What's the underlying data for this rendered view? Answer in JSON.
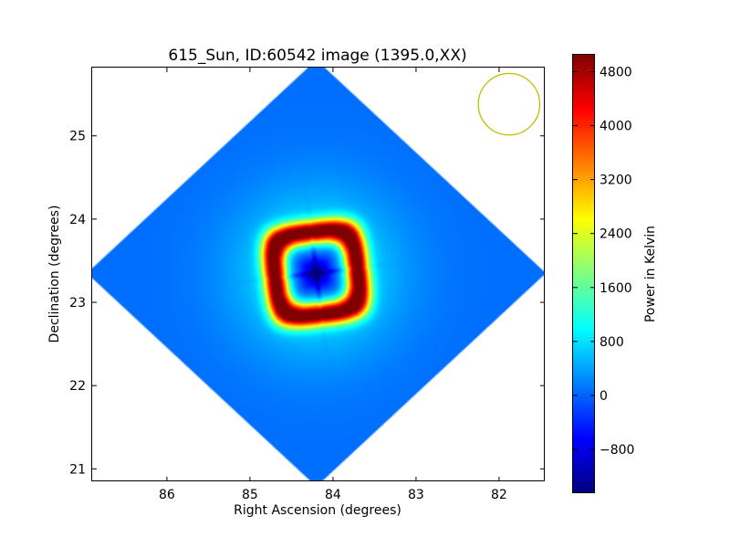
{
  "chart_data": {
    "type": "heatmap",
    "title": "615_Sun, ID:60542 image (1395.0,XX)",
    "xlabel": "Right Ascension (degrees)",
    "ylabel": "Declination (degrees)",
    "xlim": [
      86.9,
      81.45
    ],
    "ylim": [
      20.85,
      25.82
    ],
    "x_ticks": [
      86,
      85,
      84,
      83,
      82
    ],
    "y_ticks": [
      21,
      22,
      23,
      24,
      25
    ],
    "colorbar": {
      "label": "Power in Kelvin",
      "colormap": "jet",
      "range": [
        -1450,
        5050
      ],
      "ticks": [
        -800,
        0,
        800,
        1600,
        2400,
        3200,
        4000,
        4800
      ],
      "tick_labels": [
        "−800",
        "0",
        "800",
        "1600",
        "2400",
        "3200",
        "4000",
        "4800"
      ]
    },
    "image_region": {
      "shape": "diamond",
      "center": [
        84.2,
        23.35
      ],
      "half_width_ra": 2.75,
      "half_height_dec": 2.55,
      "background_value": 60
    },
    "source": {
      "center": [
        84.2,
        23.35
      ],
      "core_value": -1450,
      "ring_peak_value": 5000,
      "ring_corner_value": 4900,
      "ring_half_size_deg": 0.5,
      "halo_value": 1000,
      "halo_extent_deg": 0.95
    },
    "beam": {
      "center": [
        81.88,
        25.38
      ],
      "radius_deg": 0.37,
      "color": "#bfbf00"
    }
  }
}
